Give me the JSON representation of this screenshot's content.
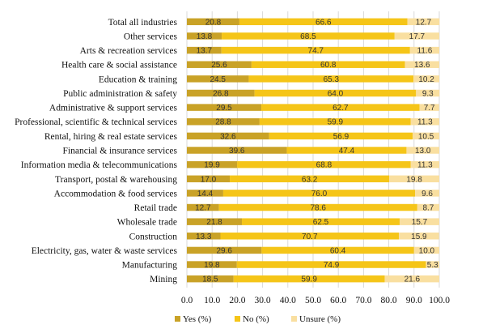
{
  "chart_data": {
    "type": "bar",
    "orientation": "horizontal",
    "stacked": true,
    "title": "",
    "xlabel": "",
    "ylabel": "",
    "xlim": [
      0,
      100
    ],
    "x_ticks": [
      "0.0",
      "10.0",
      "20.0",
      "30.0",
      "40.0",
      "50.0",
      "60.0",
      "70.0",
      "80.0",
      "90.0",
      "100.0"
    ],
    "grid": true,
    "legend_position": "bottom-left",
    "categories": [
      "Total all industries",
      "Other services",
      "Arts & recreation services",
      "Health care & social assistance",
      "Education & training",
      "Public administration & safety",
      "Administrative & support services",
      "Professional, scientific & technical services",
      "Rental, hiring & real estate services",
      "Financial & insurance services",
      "Information media & telecommunications",
      "Transport, postal & warehousing",
      "Accommodation & food services",
      "Retail trade",
      "Wholesale trade",
      "Construction",
      "Electricity, gas, water & waste services",
      "Manufacturing",
      "Mining"
    ],
    "series": [
      {
        "name": "Yes (%)",
        "color": "#c9a227",
        "values": [
          20.8,
          13.8,
          13.7,
          25.6,
          24.5,
          26.8,
          29.5,
          28.8,
          32.6,
          39.6,
          19.9,
          17.0,
          14.4,
          12.7,
          21.8,
          13.3,
          29.6,
          19.8,
          18.5
        ],
        "labels": [
          "20.8",
          "13.8",
          "13.7",
          "25.6",
          "24.5",
          "26.8",
          "29.5",
          "28.8",
          "32.6",
          "39.6",
          "19.9",
          "17.0",
          "14.4",
          "12.7",
          "21.8",
          "13.3",
          "29.6",
          "19.8",
          "18.5"
        ]
      },
      {
        "name": "No (%)",
        "color": "#f5c518",
        "values": [
          66.6,
          68.5,
          74.7,
          60.8,
          65.3,
          64.0,
          62.7,
          59.9,
          56.9,
          47.4,
          68.8,
          63.2,
          76.0,
          78.6,
          62.5,
          70.7,
          60.4,
          74.9,
          59.9
        ],
        "labels": [
          "66.6",
          "68.5",
          "74.7",
          "60.8",
          "65.3",
          "64.0",
          "62.7",
          "59.9",
          "56.9",
          "47.4",
          "68.8",
          "63.2",
          "76.0",
          "78.6",
          "62.5",
          "70.7",
          "60.4",
          "74.9",
          "59.9"
        ]
      },
      {
        "name": "Unsure (%)",
        "color": "#f9dfa0",
        "values": [
          12.7,
          17.7,
          11.6,
          13.6,
          10.2,
          9.3,
          7.7,
          11.3,
          10.5,
          13.0,
          11.3,
          19.8,
          9.6,
          8.7,
          15.7,
          15.9,
          10.0,
          5.3,
          21.6
        ],
        "labels": [
          "12.7",
          "17.7",
          "11.6",
          "13.6",
          "10.2",
          "9.3",
          "7.7",
          "11.3",
          "10.5",
          "13.0",
          "11.3",
          "19.8",
          "9.6",
          "8.7",
          "15.7",
          "15.9",
          "10.0",
          "5.3",
          "21.6"
        ]
      }
    ]
  }
}
